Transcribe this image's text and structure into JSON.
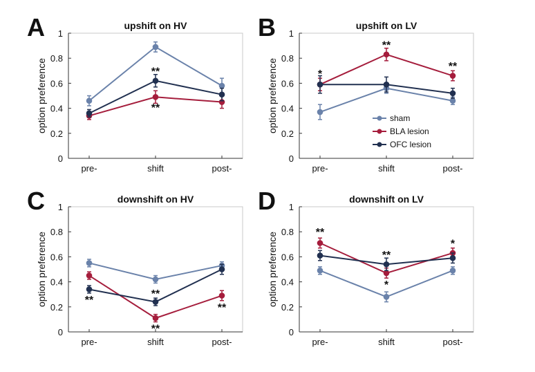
{
  "colors": {
    "sham": "#6a82aa",
    "bla": "#a51d3c",
    "ofc": "#213050"
  },
  "legend": {
    "position": "center-right in panel B",
    "entries": [
      "sham",
      "BLA lesion",
      "OFC lesion"
    ]
  },
  "chart_data": [
    {
      "type": "line",
      "letter": "A",
      "title": "upshift on HV",
      "categories": [
        "pre-",
        "shift",
        "post-"
      ],
      "ylabel": "option preference",
      "ylim": [
        0,
        1
      ],
      "yticks": [
        "0",
        "0.2",
        "0.4",
        "0.6",
        "0.8",
        "1"
      ],
      "series": [
        {
          "name": "sham",
          "values": [
            0.46,
            0.89,
            0.58
          ],
          "err": [
            0.04,
            0.04,
            0.06
          ]
        },
        {
          "name": "BLA lesion",
          "values": [
            0.34,
            0.49,
            0.45
          ],
          "err": [
            0.03,
            0.05,
            0.05
          ]
        },
        {
          "name": "OFC lesion",
          "values": [
            0.36,
            0.62,
            0.51
          ],
          "err": [
            0.03,
            0.05,
            0.05
          ]
        }
      ],
      "annotations": [
        {
          "text": "**",
          "x": "shift",
          "y": 0.7
        },
        {
          "text": "**",
          "x": "shift",
          "y": 0.41
        }
      ]
    },
    {
      "type": "line",
      "letter": "B",
      "title": "upshift on LV",
      "categories": [
        "pre-",
        "shift",
        "post-"
      ],
      "ylabel": "option preference",
      "ylim": [
        0,
        1
      ],
      "yticks": [
        "0",
        "0.2",
        "0.4",
        "0.6",
        "0.8",
        "1"
      ],
      "series": [
        {
          "name": "sham",
          "values": [
            0.37,
            0.56,
            0.46
          ],
          "err": [
            0.06,
            0.04,
            0.03
          ]
        },
        {
          "name": "BLA lesion",
          "values": [
            0.59,
            0.83,
            0.66
          ],
          "err": [
            0.05,
            0.05,
            0.04
          ]
        },
        {
          "name": "OFC lesion",
          "values": [
            0.59,
            0.59,
            0.52
          ],
          "err": [
            0.07,
            0.06,
            0.04
          ]
        }
      ],
      "annotations": [
        {
          "text": "*",
          "x": "pre-",
          "y": 0.68
        },
        {
          "text": "**",
          "x": "shift",
          "y": 0.91
        },
        {
          "text": "**",
          "x": "post-",
          "y": 0.74
        }
      ]
    },
    {
      "type": "line",
      "letter": "C",
      "title": "downshift on HV",
      "categories": [
        "pre-",
        "shift",
        "post-"
      ],
      "ylabel": "option preference",
      "ylim": [
        0,
        1
      ],
      "yticks": [
        "0",
        "0.2",
        "0.4",
        "0.6",
        "0.8",
        "1"
      ],
      "series": [
        {
          "name": "sham",
          "values": [
            0.55,
            0.42,
            0.53
          ],
          "err": [
            0.03,
            0.03,
            0.03
          ]
        },
        {
          "name": "BLA lesion",
          "values": [
            0.45,
            0.11,
            0.29
          ],
          "err": [
            0.03,
            0.03,
            0.04
          ]
        },
        {
          "name": "OFC lesion",
          "values": [
            0.34,
            0.24,
            0.5
          ],
          "err": [
            0.03,
            0.03,
            0.04
          ]
        }
      ],
      "annotations": [
        {
          "text": "**",
          "x": "pre-",
          "y": 0.26
        },
        {
          "text": "**",
          "x": "shift",
          "y": 0.31
        },
        {
          "text": "**",
          "x": "shift",
          "y": 0.03
        },
        {
          "text": "**",
          "x": "post-",
          "y": 0.2
        }
      ]
    },
    {
      "type": "line",
      "letter": "D",
      "title": "downshift on LV",
      "categories": [
        "pre-",
        "shift",
        "post-"
      ],
      "ylabel": "option preference",
      "ylim": [
        0,
        1
      ],
      "yticks": [
        "0",
        "0.2",
        "0.4",
        "0.6",
        "0.8",
        "1"
      ],
      "series": [
        {
          "name": "sham",
          "values": [
            0.49,
            0.28,
            0.49
          ],
          "err": [
            0.03,
            0.04,
            0.03
          ]
        },
        {
          "name": "BLA lesion",
          "values": [
            0.71,
            0.47,
            0.63
          ],
          "err": [
            0.04,
            0.04,
            0.04
          ]
        },
        {
          "name": "OFC lesion",
          "values": [
            0.61,
            0.54,
            0.59
          ],
          "err": [
            0.04,
            0.05,
            0.04
          ]
        }
      ],
      "annotations": [
        {
          "text": "**",
          "x": "pre-",
          "y": 0.8
        },
        {
          "text": "**",
          "x": "shift",
          "y": 0.62
        },
        {
          "text": "*",
          "x": "shift",
          "y": 0.38
        },
        {
          "text": "*",
          "x": "post-",
          "y": 0.71
        }
      ]
    }
  ]
}
